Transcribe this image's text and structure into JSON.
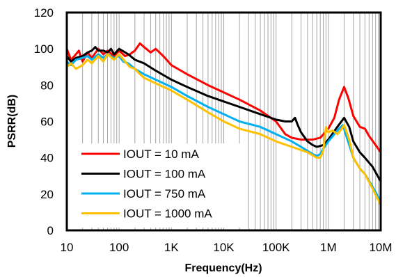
{
  "chart_data": {
    "type": "line",
    "xlabel": "Frequency(Hz)",
    "ylabel": "PSRR(dB)",
    "x_scale": "log",
    "xlim": [
      10,
      10000000
    ],
    "ylim": [
      0,
      120
    ],
    "x_ticks": [
      10,
      100,
      1000,
      10000,
      100000,
      1000000,
      10000000
    ],
    "x_tick_labels": [
      "10",
      "100",
      "1K",
      "10K",
      "100K",
      "1M",
      "10M"
    ],
    "y_ticks": [
      0,
      20,
      40,
      60,
      80,
      100,
      120
    ],
    "y_tick_labels": [
      "0",
      "20",
      "40",
      "60",
      "80",
      "100",
      "120"
    ],
    "grid": "vertical-log-minor-and-major",
    "legend_position": "bottom-left",
    "series": [
      {
        "name": "IOUT = 10 mA",
        "color": "#ff0000",
        "points": [
          [
            10,
            100
          ],
          [
            12,
            94
          ],
          [
            14,
            96
          ],
          [
            17,
            99
          ],
          [
            20,
            93
          ],
          [
            25,
            98
          ],
          [
            30,
            95
          ],
          [
            40,
            100
          ],
          [
            50,
            97
          ],
          [
            60,
            99
          ],
          [
            80,
            96
          ],
          [
            100,
            99
          ],
          [
            130,
            96
          ],
          [
            160,
            97
          ],
          [
            200,
            99
          ],
          [
            250,
            103
          ],
          [
            300,
            101
          ],
          [
            400,
            98
          ],
          [
            500,
            100
          ],
          [
            700,
            96
          ],
          [
            1000,
            91
          ],
          [
            2000,
            86
          ],
          [
            5000,
            80
          ],
          [
            10000,
            76
          ],
          [
            20000,
            72
          ],
          [
            50000,
            66
          ],
          [
            100000,
            60
          ],
          [
            150000,
            53
          ],
          [
            200000,
            51
          ],
          [
            300000,
            50
          ],
          [
            500000,
            50
          ],
          [
            700000,
            51
          ],
          [
            1000000,
            56
          ],
          [
            1300000,
            62
          ],
          [
            1600000,
            72
          ],
          [
            2000000,
            79
          ],
          [
            2400000,
            73
          ],
          [
            3000000,
            63
          ],
          [
            4000000,
            57
          ],
          [
            5000000,
            56
          ],
          [
            6000000,
            52
          ],
          [
            8000000,
            47
          ],
          [
            10000000,
            43
          ]
        ]
      },
      {
        "name": "IOUT = 100 mA",
        "color": "#000000",
        "points": [
          [
            10,
            96
          ],
          [
            12,
            93
          ],
          [
            15,
            95
          ],
          [
            20,
            96
          ],
          [
            25,
            98
          ],
          [
            30,
            99
          ],
          [
            35,
            101
          ],
          [
            40,
            99
          ],
          [
            50,
            99
          ],
          [
            60,
            98
          ],
          [
            70,
            100
          ],
          [
            80,
            97
          ],
          [
            100,
            100
          ],
          [
            150,
            97
          ],
          [
            200,
            94
          ],
          [
            300,
            92
          ],
          [
            500,
            88
          ],
          [
            1000,
            83
          ],
          [
            2000,
            79
          ],
          [
            5000,
            74
          ],
          [
            10000,
            71
          ],
          [
            20000,
            68
          ],
          [
            50000,
            64
          ],
          [
            100000,
            61
          ],
          [
            150000,
            60
          ],
          [
            200000,
            60
          ],
          [
            230000,
            62
          ],
          [
            260000,
            58
          ],
          [
            300000,
            54
          ],
          [
            400000,
            49
          ],
          [
            500000,
            47
          ],
          [
            600000,
            46
          ],
          [
            800000,
            47
          ],
          [
            1000000,
            50
          ],
          [
            1400000,
            56
          ],
          [
            2000000,
            62
          ],
          [
            2500000,
            57
          ],
          [
            3000000,
            49
          ],
          [
            4000000,
            43
          ],
          [
            5000000,
            40
          ],
          [
            7000000,
            35
          ],
          [
            10000000,
            27
          ]
        ]
      },
      {
        "name": "IOUT = 750 mA",
        "color": "#00b0f0",
        "points": [
          [
            10,
            93
          ],
          [
            12,
            91
          ],
          [
            15,
            94
          ],
          [
            20,
            95
          ],
          [
            25,
            96
          ],
          [
            30,
            94
          ],
          [
            40,
            97
          ],
          [
            50,
            95
          ],
          [
            60,
            97
          ],
          [
            80,
            95
          ],
          [
            100,
            96
          ],
          [
            120,
            93
          ],
          [
            150,
            92
          ],
          [
            200,
            89
          ],
          [
            300,
            86
          ],
          [
            500,
            83
          ],
          [
            1000,
            79
          ],
          [
            2000,
            74
          ],
          [
            5000,
            68
          ],
          [
            10000,
            64
          ],
          [
            20000,
            60
          ],
          [
            50000,
            57
          ],
          [
            100000,
            53
          ],
          [
            200000,
            49
          ],
          [
            300000,
            46
          ],
          [
            500000,
            42
          ],
          [
            600000,
            41
          ],
          [
            700000,
            42
          ],
          [
            800000,
            45
          ],
          [
            1000000,
            49
          ],
          [
            1300000,
            53
          ],
          [
            1600000,
            56
          ],
          [
            1900000,
            58
          ],
          [
            2200000,
            52
          ],
          [
            3000000,
            40
          ],
          [
            4000000,
            34
          ],
          [
            5000000,
            31
          ],
          [
            7000000,
            24
          ],
          [
            10000000,
            16
          ]
        ]
      },
      {
        "name": "IOUT = 1000 mA",
        "color": "#ffc000",
        "points": [
          [
            10,
            90
          ],
          [
            12,
            92
          ],
          [
            15,
            89
          ],
          [
            20,
            91
          ],
          [
            25,
            94
          ],
          [
            30,
            92
          ],
          [
            40,
            96
          ],
          [
            50,
            93
          ],
          [
            60,
            97
          ],
          [
            80,
            94
          ],
          [
            100,
            97
          ],
          [
            130,
            93
          ],
          [
            160,
            90
          ],
          [
            200,
            89
          ],
          [
            250,
            86
          ],
          [
            300,
            84
          ],
          [
            500,
            81
          ],
          [
            1000,
            77
          ],
          [
            2000,
            72
          ],
          [
            5000,
            65
          ],
          [
            10000,
            60
          ],
          [
            20000,
            56
          ],
          [
            50000,
            53
          ],
          [
            100000,
            49
          ],
          [
            200000,
            46
          ],
          [
            400000,
            43
          ],
          [
            600000,
            40
          ],
          [
            700000,
            40
          ],
          [
            800000,
            44
          ],
          [
            900000,
            57
          ],
          [
            1000000,
            54
          ],
          [
            1200000,
            55
          ],
          [
            1500000,
            53
          ],
          [
            1800000,
            56
          ],
          [
            2000000,
            58
          ],
          [
            2500000,
            50
          ],
          [
            3000000,
            40
          ],
          [
            4000000,
            34
          ],
          [
            5000000,
            31
          ],
          [
            7000000,
            23
          ],
          [
            10000000,
            14
          ]
        ]
      }
    ]
  }
}
